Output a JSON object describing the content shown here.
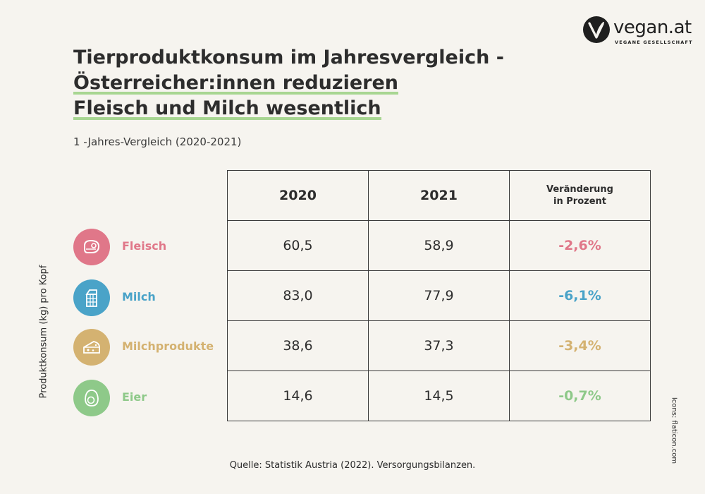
{
  "brand": {
    "name": "vegan.at",
    "tagline": "VEGANE GESELLSCHAFT"
  },
  "title": {
    "line1": "Tierproduktkonsum im Jahresvergleich -",
    "line2": "Österreicher:innen reduzieren",
    "line3": "Fleisch und Milch wesentlich"
  },
  "subtitle": "1 -Jahres-Vergleich (2020-2021)",
  "y_axis_label": "Produktkonsum (kg) pro Kopf",
  "table": {
    "headers": {
      "col1": "2020",
      "col2": "2021",
      "col3_line1": "Veränderung",
      "col3_line2": "in Prozent"
    },
    "rows": [
      {
        "label": "Fleisch",
        "icon": "steak-icon",
        "color": "#e07789",
        "v2020": "60,5",
        "v2021": "58,9",
        "change": "-2,6%"
      },
      {
        "label": "Milch",
        "icon": "milk-carton-icon",
        "color": "#4aa3c8",
        "v2020": "83,0",
        "v2021": "77,9",
        "change": "-6,1%"
      },
      {
        "label": "Milchprodukte",
        "icon": "cheese-icon",
        "color": "#d4b271",
        "v2020": "38,6",
        "v2021": "37,3",
        "change": "-3,4%"
      },
      {
        "label": "Eier",
        "icon": "egg-icon",
        "color": "#8ec989",
        "v2020": "14,6",
        "v2021": "14,5",
        "change": "-0,7%"
      }
    ]
  },
  "source": "Quelle: Statistik Austria (2022). Versorgungsbilanzen.",
  "credit": "Icons: flaticon.com",
  "colors": {
    "background": "#f6f4ef",
    "highlight": "#a8d692",
    "text": "#2d2d2d"
  }
}
